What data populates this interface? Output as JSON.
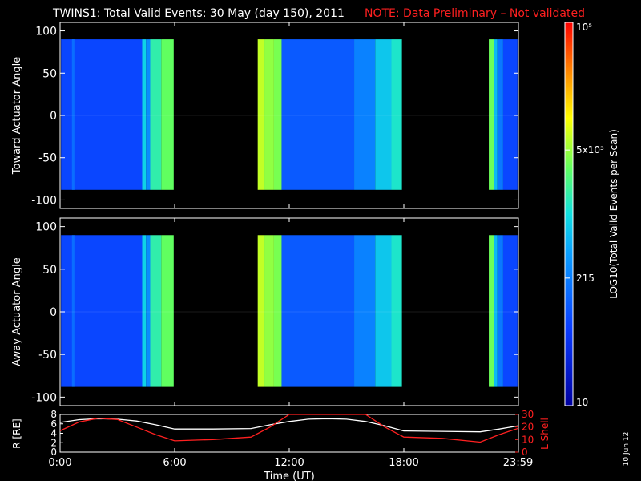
{
  "header": {
    "title": "TWINS1: Total Valid Events: 30 May (day 150), 2011",
    "note": "NOTE: Data Preliminary – Not validated"
  },
  "stamp": "10 Jun 12",
  "colors": {
    "background": "#000000",
    "axis": "#ffffff",
    "note": "#ff2020",
    "lshell": "#ff2020",
    "r_line": "#ffffff"
  },
  "chart_data": [
    {
      "type": "heatmap",
      "panel": "top",
      "ylabel": "Toward Actuator Angle",
      "ylim": [
        -110,
        110
      ],
      "yticks": [
        "-100",
        "-50",
        "0",
        "50",
        "100"
      ],
      "xlim": [
        0,
        24
      ],
      "data_angle_range": [
        -88,
        90
      ],
      "columns": [
        {
          "t0": 0.05,
          "t1": 4.3,
          "level": 0.22
        },
        {
          "t0": 0.62,
          "t1": 0.75,
          "level": 0.3
        },
        {
          "t0": 4.3,
          "t1": 4.5,
          "level": 0.48
        },
        {
          "t0": 4.5,
          "t1": 4.72,
          "level": 0.36
        },
        {
          "t0": 4.72,
          "t1": 5.3,
          "level": 0.55
        },
        {
          "t0": 5.3,
          "t1": 5.95,
          "level": 0.62
        },
        {
          "t0": 10.35,
          "t1": 10.7,
          "level": 0.7
        },
        {
          "t0": 10.7,
          "t1": 11.2,
          "level": 0.66
        },
        {
          "t0": 11.2,
          "t1": 11.6,
          "level": 0.64
        },
        {
          "t0": 11.6,
          "t1": 15.4,
          "level": 0.26
        },
        {
          "t0": 15.4,
          "t1": 16.5,
          "level": 0.34
        },
        {
          "t0": 16.5,
          "t1": 17.35,
          "level": 0.46
        },
        {
          "t0": 17.35,
          "t1": 17.9,
          "level": 0.52
        },
        {
          "t0": 22.45,
          "t1": 22.72,
          "level": 0.63
        },
        {
          "t0": 22.72,
          "t1": 22.9,
          "level": 0.44
        },
        {
          "t0": 22.9,
          "t1": 23.2,
          "level": 0.32
        },
        {
          "t0": 23.2,
          "t1": 23.95,
          "level": 0.22
        }
      ]
    },
    {
      "type": "heatmap",
      "panel": "middle",
      "ylabel": "Away Actuator Angle",
      "ylim": [
        -110,
        110
      ],
      "yticks": [
        "-100",
        "-50",
        "0",
        "50",
        "100"
      ],
      "xlim": [
        0,
        24
      ],
      "data_angle_range": [
        -88,
        90
      ],
      "columns": [
        {
          "t0": 0.05,
          "t1": 4.3,
          "level": 0.22
        },
        {
          "t0": 0.62,
          "t1": 0.75,
          "level": 0.3
        },
        {
          "t0": 4.3,
          "t1": 4.5,
          "level": 0.48
        },
        {
          "t0": 4.5,
          "t1": 4.72,
          "level": 0.36
        },
        {
          "t0": 4.72,
          "t1": 5.3,
          "level": 0.55
        },
        {
          "t0": 5.3,
          "t1": 5.95,
          "level": 0.62
        },
        {
          "t0": 10.35,
          "t1": 10.7,
          "level": 0.7
        },
        {
          "t0": 10.7,
          "t1": 11.2,
          "level": 0.66
        },
        {
          "t0": 11.2,
          "t1": 11.6,
          "level": 0.64
        },
        {
          "t0": 11.6,
          "t1": 15.4,
          "level": 0.26
        },
        {
          "t0": 15.4,
          "t1": 16.5,
          "level": 0.34
        },
        {
          "t0": 16.5,
          "t1": 17.35,
          "level": 0.46
        },
        {
          "t0": 17.35,
          "t1": 17.9,
          "level": 0.52
        },
        {
          "t0": 22.45,
          "t1": 22.72,
          "level": 0.63
        },
        {
          "t0": 22.72,
          "t1": 22.9,
          "level": 0.44
        },
        {
          "t0": 22.9,
          "t1": 23.2,
          "level": 0.32
        },
        {
          "t0": 23.2,
          "t1": 23.95,
          "level": 0.22
        }
      ]
    },
    {
      "type": "line",
      "panel": "bottom",
      "xlabel": "Time (UT)",
      "xticks": [
        {
          "t": 0,
          "label": "0:00"
        },
        {
          "t": 6,
          "label": "6:00"
        },
        {
          "t": 12,
          "label": "12:00"
        },
        {
          "t": 18,
          "label": "18:00"
        },
        {
          "t": 23.98,
          "label": "23:59"
        }
      ],
      "left_axis": {
        "label": "R [RE]",
        "ylim": [
          0,
          8
        ],
        "ticks": [
          "0",
          "2",
          "4",
          "6",
          "8"
        ]
      },
      "right_axis": {
        "label": "L Shell",
        "ylim": [
          0,
          30
        ],
        "ticks": [
          "0",
          "10",
          "20",
          "30"
        ]
      },
      "series": [
        {
          "axis": "left",
          "x": [
            0,
            1,
            2,
            3,
            4,
            5,
            6,
            8,
            10,
            11,
            12,
            13,
            14,
            15,
            16,
            17,
            18,
            20,
            22,
            23,
            24
          ],
          "y": [
            6.3,
            6.9,
            7.1,
            7.0,
            6.6,
            5.8,
            4.9,
            4.9,
            5.0,
            5.8,
            6.5,
            7.0,
            7.1,
            7.0,
            6.5,
            5.6,
            4.5,
            4.4,
            4.3,
            4.9,
            5.6
          ]
        },
        {
          "axis": "right",
          "x": [
            0,
            1,
            2,
            3,
            4,
            5,
            6,
            8,
            10,
            11,
            12,
            16,
            17,
            18,
            20,
            22,
            23,
            24
          ],
          "y": [
            17,
            24,
            27,
            26,
            20,
            14,
            9,
            10,
            12,
            20,
            30,
            30,
            20,
            12,
            11,
            8,
            14,
            19
          ]
        }
      ]
    },
    {
      "type": "colorbar",
      "label": "LOG10(Total Valid Events per Scan)",
      "ticks": [
        "10",
        "215",
        "5x10³",
        "10⁵"
      ]
    }
  ]
}
